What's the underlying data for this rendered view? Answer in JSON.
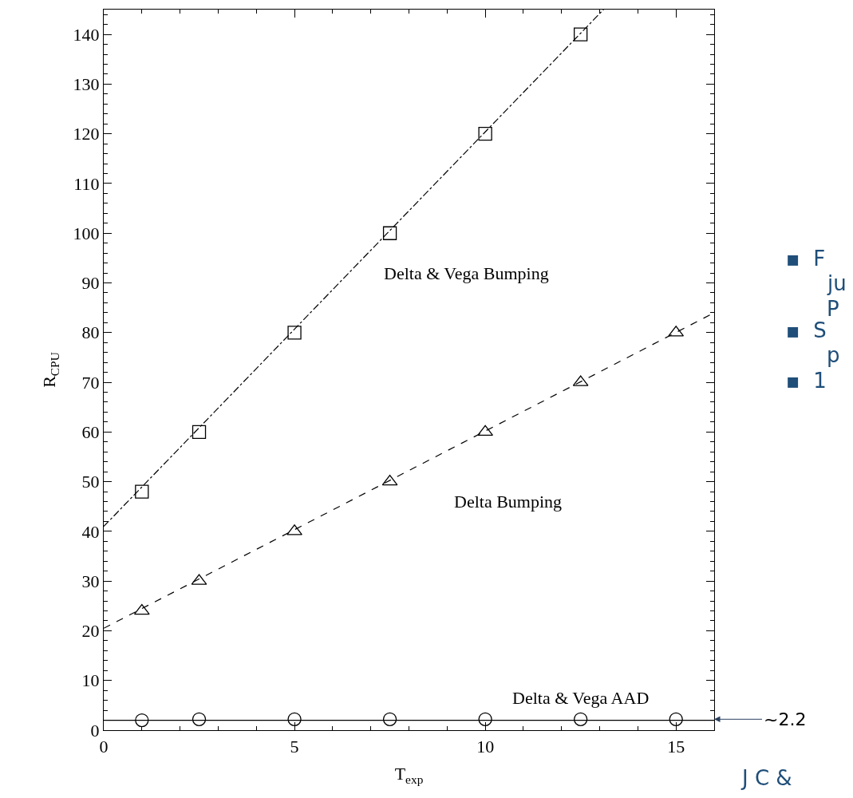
{
  "chart_data": {
    "type": "scatter",
    "xlabel": "T$_{exp}$",
    "ylabel": "R$_{CPU}$",
    "xlim": [
      0,
      16
    ],
    "xticks": [
      0,
      5,
      10,
      15
    ],
    "ylim": [
      0,
      145
    ],
    "yticks": [
      0,
      10,
      20,
      30,
      40,
      50,
      60,
      70,
      80,
      90,
      100,
      110,
      120,
      130,
      140
    ],
    "series": [
      {
        "marker": "square",
        "color": "#000000",
        "x": [
          1,
          2.5,
          5,
          7.5,
          10,
          12.5
        ],
        "values": [
          48,
          60,
          80,
          100,
          120,
          140
        ]
      },
      {
        "type": "line",
        "marker": "none",
        "line_style": "dashdot",
        "color": "#000000",
        "x": [
          0,
          13.1
        ],
        "values": [
          41,
          145
        ]
      },
      {
        "marker": "triangle",
        "color": "#000000",
        "x": [
          1,
          2.5,
          5,
          7.5,
          10,
          12.5,
          15
        ],
        "values": [
          24,
          30,
          40,
          50,
          60,
          70,
          80
        ]
      },
      {
        "type": "line",
        "marker": "none",
        "line_style": "dashed",
        "color": "#000000",
        "x": [
          0,
          16
        ],
        "values": [
          20.5,
          84
        ]
      },
      {
        "marker": "circle",
        "color": "#000000",
        "x": [
          1,
          2.5,
          5,
          7.5,
          10,
          12.5,
          15
        ],
        "values": [
          2,
          2.2,
          2.2,
          2.2,
          2.2,
          2.2,
          2.2
        ]
      },
      {
        "type": "line",
        "marker": "none",
        "line_style": "solid",
        "color": "#000000",
        "x": [
          0,
          16
        ],
        "values": [
          2,
          2
        ]
      }
    ],
    "annotations": [
      "Delta & Vega Bumping",
      "Delta Bumping",
      "Delta & Vega AAD",
      {
        "text": "~2.2",
        "x": 16,
        "y": 2.2
      },
      "▪  F",
      "ju",
      "P",
      "▪  S",
      "p",
      "▪  1",
      "J C &"
    ]
  }
}
